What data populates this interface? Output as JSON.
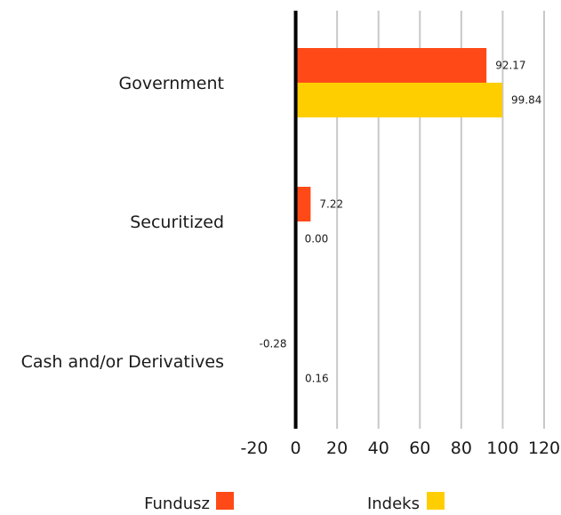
{
  "chart_data": {
    "type": "bar",
    "orientation": "horizontal",
    "categories": [
      "Government",
      "Securitized",
      "Cash and/or Derivatives"
    ],
    "series": [
      {
        "name": "Fundusz",
        "values": [
          92.17,
          7.22,
          -0.28
        ],
        "labels": [
          "92.17",
          "7.22",
          "-0.28"
        ],
        "color": "#FF4A17"
      },
      {
        "name": "Indeks",
        "values": [
          99.84,
          0.0,
          0.16
        ],
        "labels": [
          "99.84",
          "0.00",
          "0.16"
        ],
        "color": "#FFCE00"
      }
    ],
    "xlim": [
      -20,
      120
    ],
    "xticks": [
      "-20",
      "0",
      "20",
      "40",
      "60",
      "80",
      "100",
      "120"
    ],
    "grid": true,
    "legend": "bottom"
  }
}
